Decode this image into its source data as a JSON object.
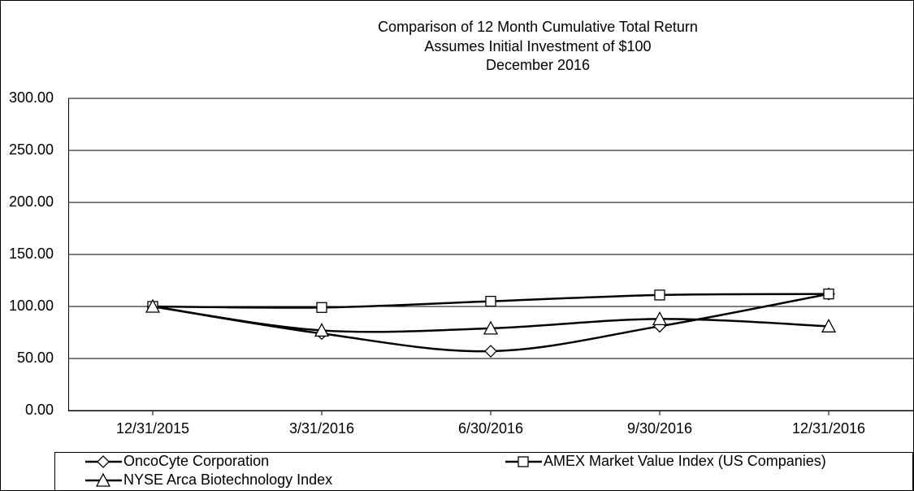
{
  "chart_data": {
    "type": "line",
    "title": "Comparison of 12 Month Cumulative Total Return",
    "subtitle": [
      "Assumes Initial Investment of $100",
      "December 2016"
    ],
    "categories": [
      "12/31/2015",
      "3/31/2016",
      "6/30/2016",
      "9/30/2016",
      "12/31/2016"
    ],
    "series": [
      {
        "name": "OncoCyte Corporation",
        "color": "#000000",
        "marker": "diamond",
        "values": [
          100,
          74,
          57,
          81,
          112
        ]
      },
      {
        "name": "AMEX Market Value Index (US Companies)",
        "color": "#000000",
        "marker": "square",
        "values": [
          100,
          99,
          105,
          111,
          112
        ]
      },
      {
        "name": "NYSE Arca Biotechnology Index",
        "color": "#000000",
        "marker": "triangle",
        "values": [
          100,
          77,
          79,
          88,
          81
        ]
      }
    ],
    "ylim": [
      0,
      300
    ],
    "yticks": [
      {
        "value": 0,
        "label": "0.00"
      },
      {
        "value": 50,
        "label": "50.00"
      },
      {
        "value": 100,
        "label": "100.00"
      },
      {
        "value": 150,
        "label": "150.00"
      },
      {
        "value": 200,
        "label": "200.00"
      },
      {
        "value": 250,
        "label": "250.00"
      },
      {
        "value": 300,
        "label": "300.00"
      }
    ],
    "grid": true,
    "smooth": true,
    "legend": "bottom"
  }
}
